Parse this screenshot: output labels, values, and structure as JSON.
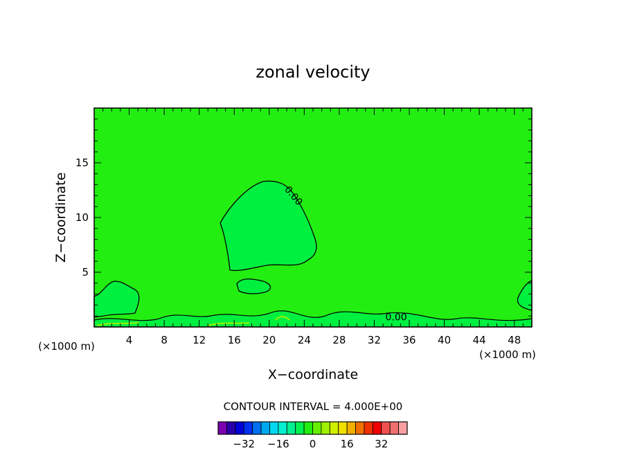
{
  "chart_data": {
    "type": "heatmap",
    "title": "zonal velocity",
    "xlabel": "X−coordinate",
    "ylabel": "Z−coordinate",
    "x_unit_left": "(×1000 m)",
    "x_unit_right": "(×1000 m)",
    "xlim": [
      0,
      50
    ],
    "ylim": [
      0,
      20
    ],
    "x_ticks": [
      4,
      8,
      12,
      16,
      20,
      24,
      28,
      32,
      36,
      40,
      44,
      48
    ],
    "y_ticks": [
      5,
      10,
      15
    ],
    "background_color": "#22ee11",
    "contour_labels": [
      {
        "text": "0.00",
        "x": 22.5,
        "y": 11.8,
        "rotate": 50
      },
      {
        "text": "0.00",
        "x": 34.5,
        "y": 0.6,
        "rotate": 0
      }
    ],
    "contour_interval_text": "CONTOUR INTERVAL = 4.000E+00",
    "colorbar": {
      "colors": [
        "#7a00b0",
        "#2a00a8",
        "#0000d8",
        "#0030f0",
        "#0070f0",
        "#00a8f0",
        "#00d8f0",
        "#00f0d0",
        "#00f090",
        "#00f050",
        "#22ee11",
        "#66f000",
        "#a0f000",
        "#d0f000",
        "#f0e000",
        "#f0b000",
        "#f07000",
        "#f03000",
        "#f00000",
        "#f05050",
        "#f07070",
        "#f8a0a0"
      ],
      "tick_values": [
        -32,
        -16,
        0,
        16,
        32
      ],
      "tick_labels": [
        "−32",
        "−16",
        "0",
        "16",
        "32"
      ],
      "vmin": -44,
      "vmax": 44
    }
  }
}
